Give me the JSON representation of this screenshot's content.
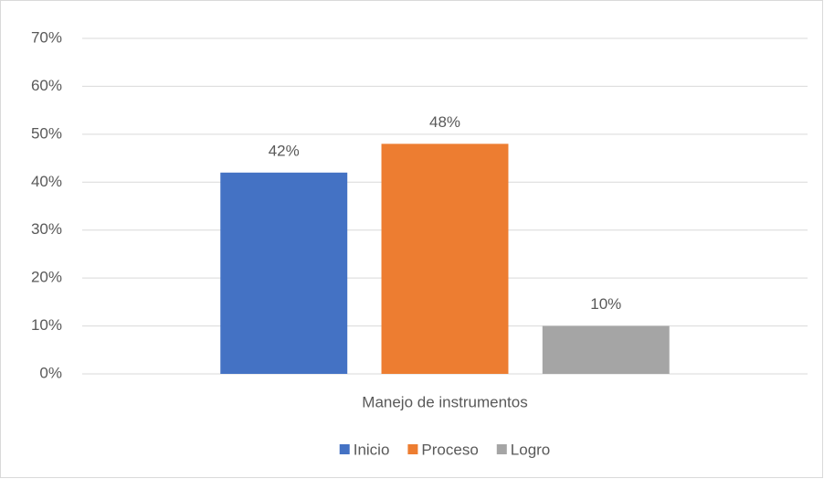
{
  "chart_data": {
    "type": "bar",
    "categories": [
      "Manejo de instrumentos"
    ],
    "series": [
      {
        "name": "Inicio",
        "color": "#4472c4",
        "values": [
          42
        ],
        "value_labels": [
          "42%"
        ]
      },
      {
        "name": "Proceso",
        "color": "#ed7d31",
        "values": [
          48
        ],
        "value_labels": [
          "48%"
        ]
      },
      {
        "name": "Logro",
        "color": "#a5a5a5",
        "values": [
          10
        ],
        "value_labels": [
          "10%"
        ]
      }
    ],
    "ylim": [
      0,
      70
    ],
    "yticks": [
      {
        "value": 0,
        "label": "0%"
      },
      {
        "value": 10,
        "label": "10%"
      },
      {
        "value": 20,
        "label": "20%"
      },
      {
        "value": 30,
        "label": "30%"
      },
      {
        "value": 40,
        "label": "40%"
      },
      {
        "value": 50,
        "label": "50%"
      },
      {
        "value": 60,
        "label": "60%"
      },
      {
        "value": 70,
        "label": "70%"
      }
    ],
    "grid": true,
    "legend": "bottom"
  }
}
